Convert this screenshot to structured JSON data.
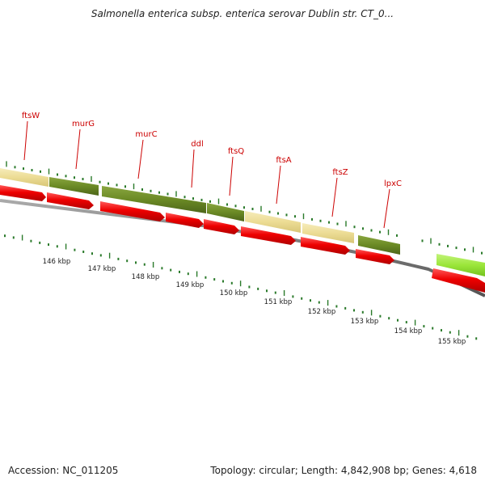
{
  "title": "Salmonella enterica subsp. enterica serovar Dublin str. CT_0...",
  "footer": {
    "accession": "Accession: NC_011205",
    "summary": "Topology: circular; Length: 4,842,908 bp; Genes: 4,618"
  },
  "colors": {
    "gene_label": "#cc0000",
    "cds": "#ee0000",
    "gene_olive": "#6b8a25",
    "gene_tan": "#eede99",
    "gene_lime": "#9be63a",
    "backbone": "#777777",
    "tick": "#2a7a2a"
  },
  "genes": [
    {
      "name": "ftsW"
    },
    {
      "name": "murG"
    },
    {
      "name": "murC"
    },
    {
      "name": "ddl"
    },
    {
      "name": "ftsQ"
    },
    {
      "name": "ftsA"
    },
    {
      "name": "ftsZ"
    },
    {
      "name": "lpxC"
    }
  ],
  "kbp_labels": [
    "146 kbp",
    "147 kbp",
    "148 kbp",
    "149 kbp",
    "150 kbp",
    "151 kbp",
    "152 kbp",
    "153 kbp",
    "154 kbp",
    "155 kbp"
  ]
}
